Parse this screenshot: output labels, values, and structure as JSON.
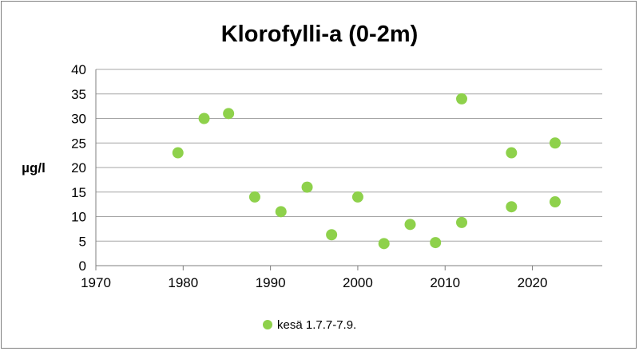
{
  "colors": {
    "marker": "#8ed14b",
    "grid": "#a6a6a6",
    "axis": "#7f7f7f"
  },
  "chart_data": {
    "type": "scatter",
    "title": "Klorofylli-a (0-2m)",
    "xlabel": "",
    "ylabel": "µg/l",
    "xlim": [
      1970,
      2028
    ],
    "ylim": [
      0,
      40
    ],
    "xticks": [
      1970,
      1980,
      1990,
      2000,
      2010,
      2020
    ],
    "yticks": [
      0,
      5,
      10,
      15,
      20,
      25,
      30,
      35,
      40
    ],
    "grid": "horizontal",
    "legend_position": "bottom",
    "series": [
      {
        "name": "kesä 1.7.7-7.9.",
        "points": [
          {
            "x": 1979.4,
            "y": 23
          },
          {
            "x": 1982.4,
            "y": 30
          },
          {
            "x": 1985.2,
            "y": 31
          },
          {
            "x": 1988.2,
            "y": 14
          },
          {
            "x": 1991.2,
            "y": 11
          },
          {
            "x": 1994.2,
            "y": 16
          },
          {
            "x": 1997.0,
            "y": 6.3
          },
          {
            "x": 2000.0,
            "y": 14
          },
          {
            "x": 2003.0,
            "y": 4.5
          },
          {
            "x": 2006.0,
            "y": 8.4
          },
          {
            "x": 2008.9,
            "y": 4.7
          },
          {
            "x": 2011.9,
            "y": 34
          },
          {
            "x": 2011.9,
            "y": 8.8
          },
          {
            "x": 2017.6,
            "y": 23
          },
          {
            "x": 2017.6,
            "y": 12
          },
          {
            "x": 2022.6,
            "y": 25
          },
          {
            "x": 2022.6,
            "y": 13
          }
        ]
      }
    ]
  }
}
